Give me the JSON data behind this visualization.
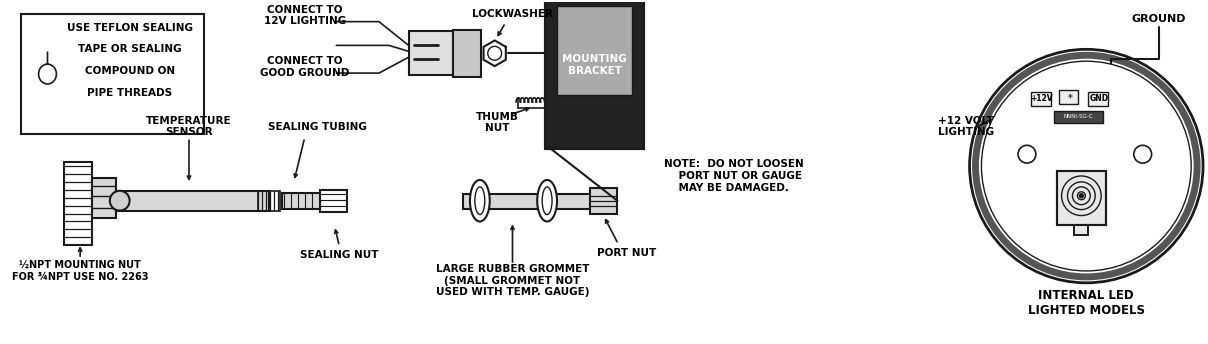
{
  "bg_color": "#ffffff",
  "line_color": "#1a1a1a",
  "text_color": "#000000",
  "box1_text": [
    "USE TEFLON SEALING",
    "TAPE OR SEALING",
    "COMPOUND ON",
    "PIPE THREADS"
  ],
  "labels": {
    "connect_12v": "CONNECT TO\n12V LIGHTING",
    "connect_ground": "CONNECT TO\nGOOD GROUND",
    "lockwasher": "LOCKWASHER",
    "thumb_nut": "THUMB\nNUT",
    "mounting_bracket": "MOUNTING\nBRACKET",
    "temp_sensor": "TEMPERATURE\nSENSOR",
    "sealing_tubing": "SEALING TUBING",
    "sealing_nut": "SEALING NUT",
    "mounting_nut": "½NPT MOUNTING NUT\nFOR ¾NPT USE NO. 2263",
    "large_rubber": "LARGE RUBBER GROMMET\n(SMALL GROMMET NOT\nUSED WITH TEMP. GAUGE)",
    "port_nut": "PORT NUT",
    "note": "NOTE:  DO NOT LOOSEN\n    PORT NUT OR GAUGE\n    MAY BE DAMAGED.",
    "ground": "GROUND",
    "volt_lighting": "+12 VOLT\nLIGHTING",
    "internal_led": "INTERNAL LED\nLIGHTED MODELS"
  }
}
